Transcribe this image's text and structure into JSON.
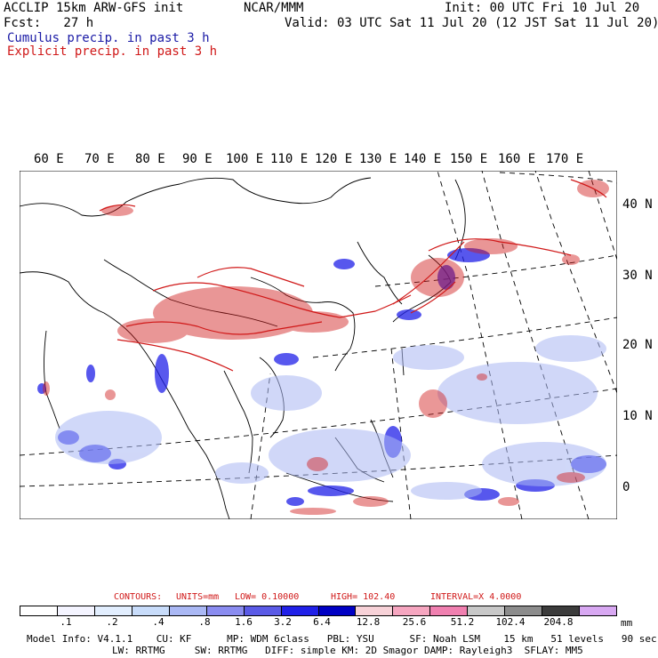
{
  "header": {
    "title": "ACCLIP 15km ARW-GFS init",
    "org": "NCAR/MMM",
    "init": "Init: 00 UTC Fri 10 Jul 20",
    "fcst": "Fcst:   27 h",
    "valid": "Valid: 03 UTC Sat 11 Jul 20 (12 JST Sat 11 Jul 20)",
    "legend_cumulus": "Cumulus precip. in past 3 h",
    "legend_explicit": "Explicit precip. in past 3 h"
  },
  "map": {
    "lon_labels": [
      "60 E",
      "70 E",
      "80 E",
      "90 E",
      "100 E",
      "110 E",
      "120 E",
      "130 E",
      "140 E",
      "150 E",
      "160 E",
      "170 E"
    ],
    "lat_labels": [
      "40 N",
      "30 N",
      "20 N",
      "10 N",
      "0"
    ]
  },
  "colors": {
    "cumulus": "#1a1aa6",
    "explicit": "#d01818"
  },
  "contours": {
    "label": "CONTOURS:",
    "units": "UNITS=mm",
    "low": "LOW= 0.10000",
    "high": "HIGH= 102.40",
    "interval": "INTERVAL=X 4.0000"
  },
  "colorbar": {
    "colors": [
      "#ffffff",
      "#f4f4ff",
      "#e2eefe",
      "#c8dcfa",
      "#aab8f4",
      "#8a8cf0",
      "#5a5ae6",
      "#2020e8",
      "#0000c4",
      "#f7d2d8",
      "#f6a6c0",
      "#f080b0",
      "#c8c8c8",
      "#8c8c8c",
      "#3c3c3c",
      "#d8a8f2"
    ],
    "labels": [
      ".1",
      ".2",
      ".4",
      ".8",
      "1.6",
      "3.2",
      "6.4",
      "12.8",
      "25.6",
      "51.2",
      "102.4",
      "204.8"
    ],
    "units": "mm"
  },
  "model_info": {
    "line1": "Model Info: V4.1.1    CU: KF      MP: WDM 6class   PBL: YSU      SF: Noah LSM    15 km   51 levels   90 sec",
    "line2": "LW: RRTMG     SW: RRTMG   DIFF: simple KM: 2D Smagor DAMP: Rayleigh3  SFLAY: MM5"
  }
}
